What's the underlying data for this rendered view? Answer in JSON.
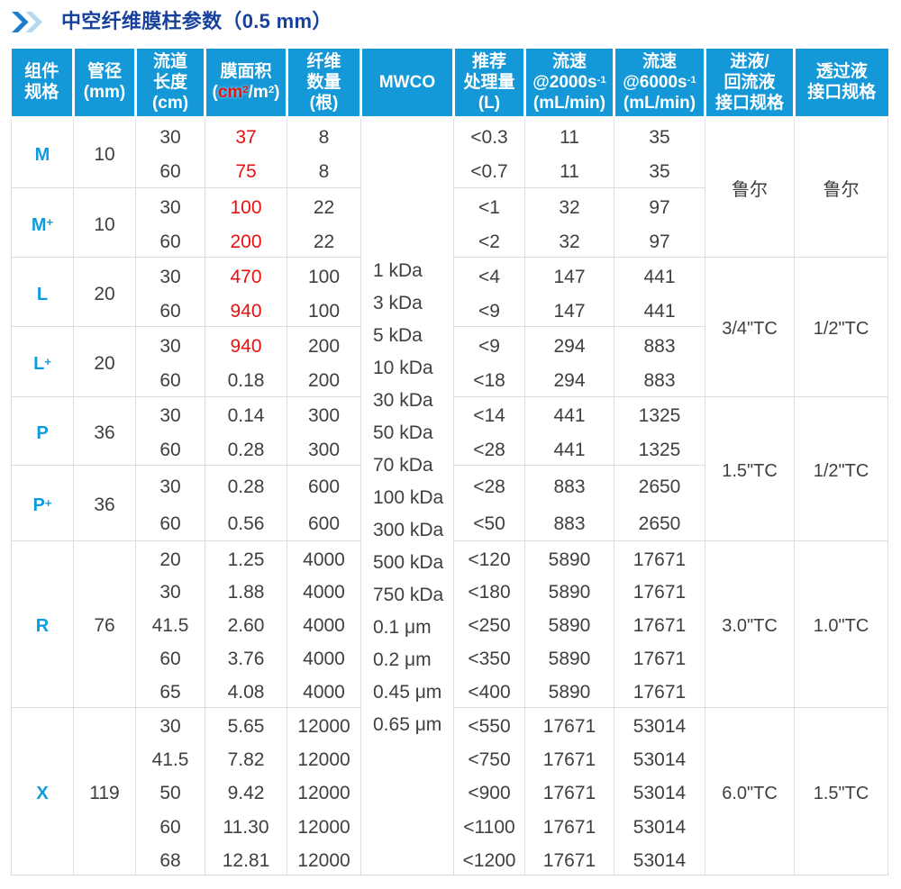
{
  "title": {
    "icon": "double-chevron-right",
    "text": "中空纤维膜柱参数（0.5 mm）"
  },
  "colors": {
    "header_bg": "#1498d8",
    "title_blue": "#17419c",
    "accent_blue": "#0d9be0",
    "red": "#e81010",
    "grid": "#dcdcdc",
    "text": "#3f3f3f",
    "chevron_dark": "#1f7ecb",
    "chevron_light": "#b5d8f0"
  },
  "table": {
    "columns": [
      {
        "key": "component",
        "lines": [
          "组件",
          "规格"
        ]
      },
      {
        "key": "diameter",
        "lines": [
          "管径",
          "(mm)"
        ]
      },
      {
        "key": "length",
        "lines": [
          "流道",
          "长度",
          "(cm)"
        ]
      },
      {
        "key": "area",
        "lines": [
          "膜面积",
          {
            "parts": [
              {
                "t": "("
              },
              {
                "t": "cm",
                "red": true
              },
              {
                "t": "2",
                "red": true,
                "sup": true
              },
              {
                "t": "/m"
              },
              {
                "t": "2",
                "sup": true
              },
              {
                "t": ")"
              }
            ]
          }
        ]
      },
      {
        "key": "fibers",
        "lines": [
          "纤维",
          "数量",
          "(根)"
        ]
      },
      {
        "key": "mwco",
        "lines": [
          "MWCO"
        ]
      },
      {
        "key": "volume",
        "lines": [
          "推荐",
          "处理量",
          "(L)"
        ]
      },
      {
        "key": "flow2000",
        "lines": [
          "流速",
          {
            "parts": [
              {
                "t": "@2000s"
              },
              {
                "t": "-1",
                "sup": true
              }
            ]
          },
          "(mL/min)"
        ]
      },
      {
        "key": "flow6000",
        "lines": [
          "流速",
          {
            "parts": [
              {
                "t": "@6000s"
              },
              {
                "t": "-1",
                "sup": true
              }
            ]
          },
          "(mL/min)"
        ]
      },
      {
        "key": "inlet_port",
        "lines": [
          "进液/",
          "回流液",
          "接口规格"
        ]
      },
      {
        "key": "permeate_port",
        "lines": [
          "透过液",
          "接口规格"
        ]
      }
    ],
    "mwco": {
      "items": [
        "1 kDa",
        "3 kDa",
        "5 kDa",
        "10 kDa",
        "30 kDa",
        "50 kDa",
        "70 kDa",
        "100 kDa",
        "300 kDa",
        "500 kDa",
        "750 kDa",
        "0.1 μm",
        "0.2 μm",
        "0.45 μm",
        "0.65 μm"
      ]
    },
    "groups": [
      {
        "name": "M",
        "sup": "",
        "diameter": "10",
        "rows": [
          {
            "len": "30",
            "area": "37",
            "red": true,
            "fib": "8",
            "vol": "<0.3",
            "f2k": "11",
            "f6k": "35"
          },
          {
            "len": "60",
            "area": "75",
            "red": true,
            "fib": "8",
            "vol": "<0.7",
            "f2k": "11",
            "f6k": "35"
          }
        ]
      },
      {
        "name": "M",
        "sup": "+",
        "diameter": "10",
        "rows": [
          {
            "len": "30",
            "area": "100",
            "red": true,
            "fib": "22",
            "vol": "<1",
            "f2k": "32",
            "f6k": "97"
          },
          {
            "len": "60",
            "area": "200",
            "red": true,
            "fib": "22",
            "vol": "<2",
            "f2k": "32",
            "f6k": "97"
          }
        ]
      },
      {
        "name": "L",
        "sup": "",
        "diameter": "20",
        "rows": [
          {
            "len": "30",
            "area": "470",
            "red": true,
            "fib": "100",
            "vol": "<4",
            "f2k": "147",
            "f6k": "441"
          },
          {
            "len": "60",
            "area": "940",
            "red": true,
            "fib": "100",
            "vol": "<9",
            "f2k": "147",
            "f6k": "441"
          }
        ]
      },
      {
        "name": "L",
        "sup": "+",
        "diameter": "20",
        "rows": [
          {
            "len": "30",
            "area": "940",
            "red": true,
            "fib": "200",
            "vol": "<9",
            "f2k": "294",
            "f6k": "883"
          },
          {
            "len": "60",
            "area": "0.18",
            "red": false,
            "fib": "200",
            "vol": "<18",
            "f2k": "294",
            "f6k": "883"
          }
        ]
      },
      {
        "name": "P",
        "sup": "",
        "diameter": "36",
        "rows": [
          {
            "len": "30",
            "area": "0.14",
            "red": false,
            "fib": "300",
            "vol": "<14",
            "f2k": "441",
            "f6k": "1325"
          },
          {
            "len": "60",
            "area": "0.28",
            "red": false,
            "fib": "300",
            "vol": "<28",
            "f2k": "441",
            "f6k": "1325"
          }
        ]
      },
      {
        "name": "P",
        "sup": "+",
        "diameter": "36",
        "rows": [
          {
            "len": "30",
            "area": "0.28",
            "red": false,
            "fib": "600",
            "vol": "<28",
            "f2k": "883",
            "f6k": "2650"
          },
          {
            "len": "60",
            "area": "0.56",
            "red": false,
            "fib": "600",
            "vol": "<50",
            "f2k": "883",
            "f6k": "2650"
          }
        ]
      },
      {
        "name": "R",
        "sup": "",
        "diameter": "76",
        "rows": [
          {
            "len": "20",
            "area": "1.25",
            "red": false,
            "fib": "4000",
            "vol": "<120",
            "f2k": "5890",
            "f6k": "17671"
          },
          {
            "len": "30",
            "area": "1.88",
            "red": false,
            "fib": "4000",
            "vol": "<180",
            "f2k": "5890",
            "f6k": "17671"
          },
          {
            "len": "41.5",
            "area": "2.60",
            "red": false,
            "fib": "4000",
            "vol": "<250",
            "f2k": "5890",
            "f6k": "17671"
          },
          {
            "len": "60",
            "area": "3.76",
            "red": false,
            "fib": "4000",
            "vol": "<350",
            "f2k": "5890",
            "f6k": "17671"
          },
          {
            "len": "65",
            "area": "4.08",
            "red": false,
            "fib": "4000",
            "vol": "<400",
            "f2k": "5890",
            "f6k": "17671"
          }
        ]
      },
      {
        "name": "X",
        "sup": "",
        "diameter": "119",
        "rows": [
          {
            "len": "30",
            "area": "5.65",
            "red": false,
            "fib": "12000",
            "vol": "<550",
            "f2k": "17671",
            "f6k": "53014"
          },
          {
            "len": "41.5",
            "area": "7.82",
            "red": false,
            "fib": "12000",
            "vol": "<750",
            "f2k": "17671",
            "f6k": "53014"
          },
          {
            "len": "50",
            "area": "9.42",
            "red": false,
            "fib": "12000",
            "vol": "<900",
            "f2k": "17671",
            "f6k": "53014"
          },
          {
            "len": "60",
            "area": "11.30",
            "red": false,
            "fib": "12000",
            "vol": "<1100",
            "f2k": "17671",
            "f6k": "53014"
          },
          {
            "len": "68",
            "area": "12.81",
            "red": false,
            "fib": "12000",
            "vol": "<1200",
            "f2k": "17671",
            "f6k": "53014"
          }
        ]
      }
    ],
    "port_groups": [
      {
        "inlet": "鲁尔",
        "permeate": "鲁尔"
      },
      {
        "inlet": "3/4\"TC",
        "permeate": "1/2\"TC"
      },
      {
        "inlet": "1.5\"TC",
        "permeate": "1/2\"TC"
      },
      {
        "inlet": "3.0\"TC",
        "permeate": "1.0\"TC"
      },
      {
        "inlet": "6.0\"TC",
        "permeate": "1.5\"TC"
      }
    ]
  }
}
